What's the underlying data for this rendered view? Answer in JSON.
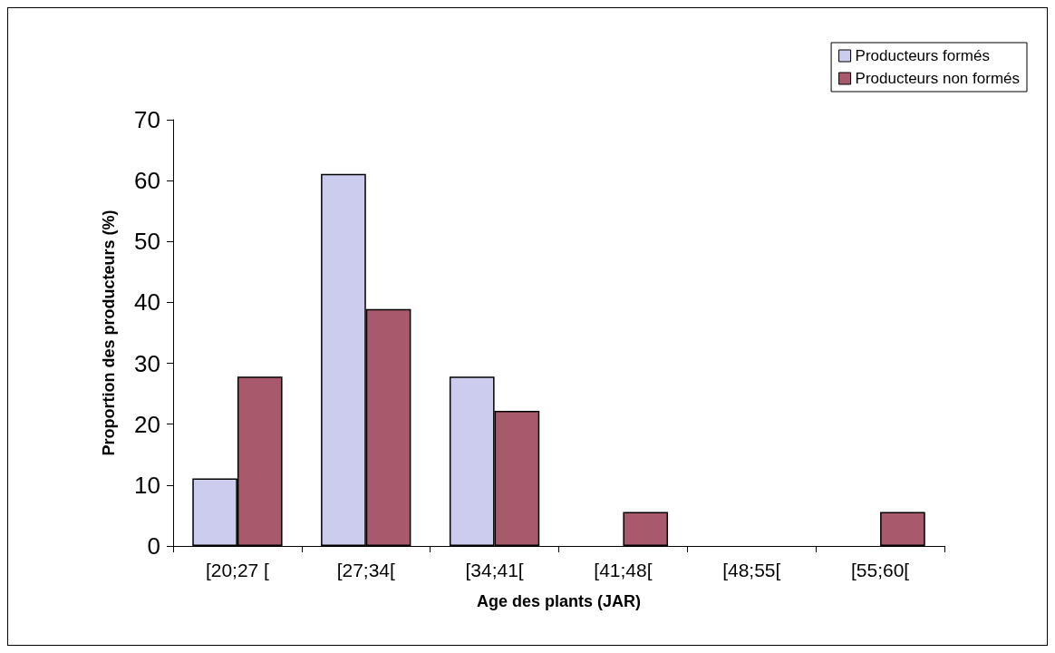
{
  "chart_data": {
    "type": "bar",
    "xlabel": "Age des plants (JAR)",
    "ylabel": "Proportion des producteurs (%)",
    "categories": [
      "[20;27 [",
      "[27;34[",
      "[34;41[",
      "[41;48[",
      "[48;55[",
      "[55;60["
    ],
    "series": [
      {
        "name": "Producteurs formés",
        "color": "#ccccee",
        "values": [
          11.1,
          61.1,
          27.8,
          0,
          0,
          0
        ]
      },
      {
        "name": "Producteurs non formés",
        "color": "#a85a6c",
        "values": [
          27.8,
          38.9,
          22.2,
          5.6,
          0,
          5.6
        ]
      }
    ],
    "ylim": [
      0,
      70
    ],
    "yticks": [
      0,
      10,
      20,
      30,
      40,
      50,
      60,
      70
    ],
    "grid": false,
    "legend": "top right"
  }
}
